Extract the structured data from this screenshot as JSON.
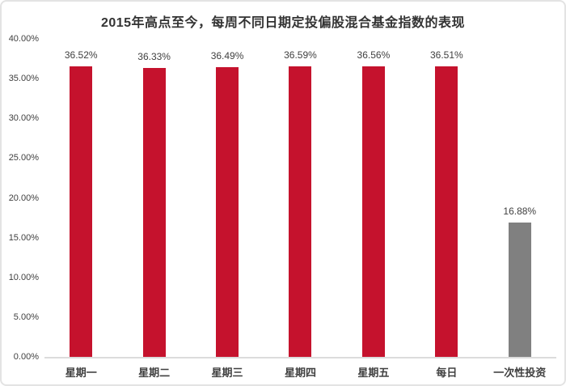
{
  "chart_data": {
    "type": "bar",
    "title": "2015年高点至今，每周不同日期定投偏股混合基金指数的表现",
    "categories": [
      "星期一",
      "星期二",
      "星期三",
      "星期四",
      "星期五",
      "每日",
      "一次性投资"
    ],
    "values": [
      36.52,
      36.33,
      36.49,
      36.59,
      36.56,
      36.51,
      16.88
    ],
    "value_labels": [
      "36.52%",
      "36.33%",
      "36.49%",
      "36.59%",
      "36.56%",
      "36.51%",
      "16.88%"
    ],
    "bar_colors": [
      "#c5122d",
      "#c5122d",
      "#c5122d",
      "#c5122d",
      "#c5122d",
      "#c5122d",
      "#808080"
    ],
    "xlabel": "",
    "ylabel": "",
    "ylim": [
      0,
      40
    ],
    "ytick_step": 5,
    "ytick_labels": [
      "0.00%",
      "5.00%",
      "10.00%",
      "15.00%",
      "20.00%",
      "25.00%",
      "30.00%",
      "35.00%",
      "40.00%"
    ],
    "grid": false,
    "legend": "none",
    "colors": {
      "series_red": "#c5122d",
      "series_gray": "#808080",
      "axis_line": "#dcdcdc",
      "label_text": "#404040",
      "title_text": "#333333",
      "card_border": "#e3e3e3",
      "background": "#ffffff"
    }
  }
}
